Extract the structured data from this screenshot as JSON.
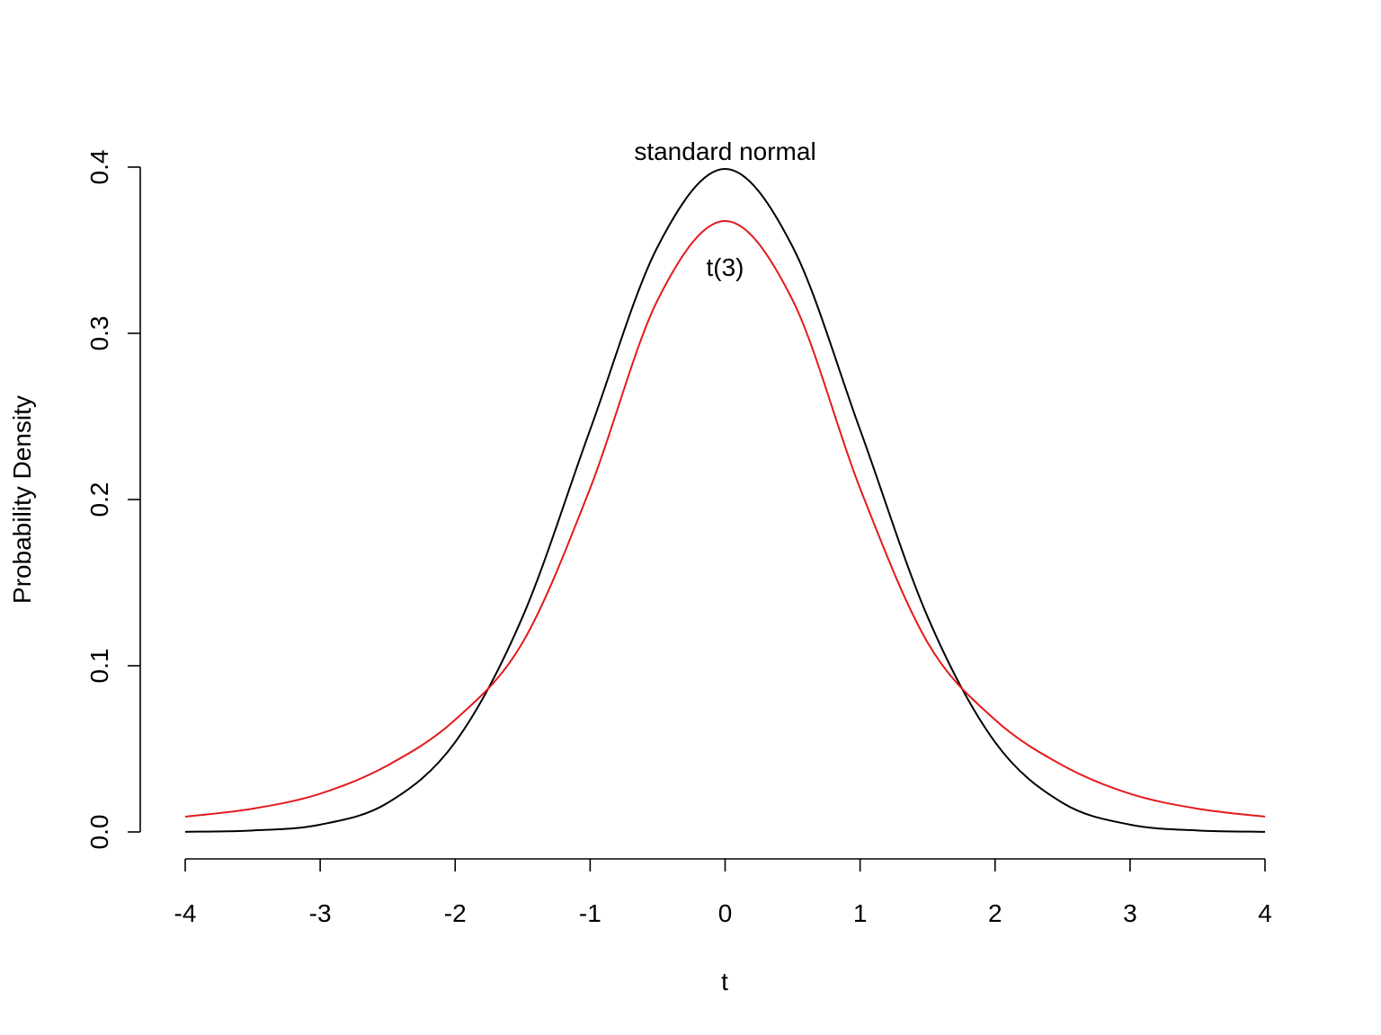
{
  "chart_data": {
    "type": "line",
    "xlabel": "t",
    "ylabel": "Probability Density",
    "xlim": [
      -4,
      4
    ],
    "ylim": [
      0,
      0.4
    ],
    "x_ticks": [
      -4,
      -3,
      -2,
      -1,
      0,
      1,
      2,
      3,
      4
    ],
    "x_tick_labels": [
      "-4",
      "-3",
      "-2",
      "-1",
      "0",
      "1",
      "2",
      "3",
      "4"
    ],
    "y_ticks": [
      0,
      0.1,
      0.2,
      0.3,
      0.4
    ],
    "y_tick_labels": [
      "0.0",
      "0.1",
      "0.2",
      "0.3",
      "0.4"
    ],
    "grid": false,
    "series": [
      {
        "color": "#000000",
        "x": [
          -4,
          -3.5,
          -3,
          -2.5,
          -2,
          -1.5,
          -1,
          -0.5,
          0,
          0.5,
          1,
          1.5,
          2,
          2.5,
          3,
          3.5,
          4
        ],
        "values": [
          0.0001,
          0.0009,
          0.0044,
          0.0175,
          0.054,
          0.1295,
          0.242,
          0.3521,
          0.3989,
          0.3521,
          0.242,
          0.1295,
          0.054,
          0.0175,
          0.0044,
          0.0009,
          0.0001
        ]
      },
      {
        "color": "#e41a1c",
        "x": [
          -4,
          -3.5,
          -3,
          -2.5,
          -2,
          -1.5,
          -1,
          -0.5,
          0,
          0.5,
          1,
          1.5,
          2,
          2.5,
          3,
          3.5,
          4
        ],
        "values": [
          0.0092,
          0.014,
          0.023,
          0.0401,
          0.0675,
          0.114,
          0.2067,
          0.32,
          0.3676,
          0.32,
          0.2067,
          0.114,
          0.0675,
          0.0401,
          0.023,
          0.014,
          0.0092
        ]
      }
    ],
    "annotations": [
      {
        "text": "standard normal",
        "x": 0,
        "y": 0.4
      },
      {
        "text": "t(3)",
        "x": 0,
        "y": 0.34
      }
    ]
  }
}
